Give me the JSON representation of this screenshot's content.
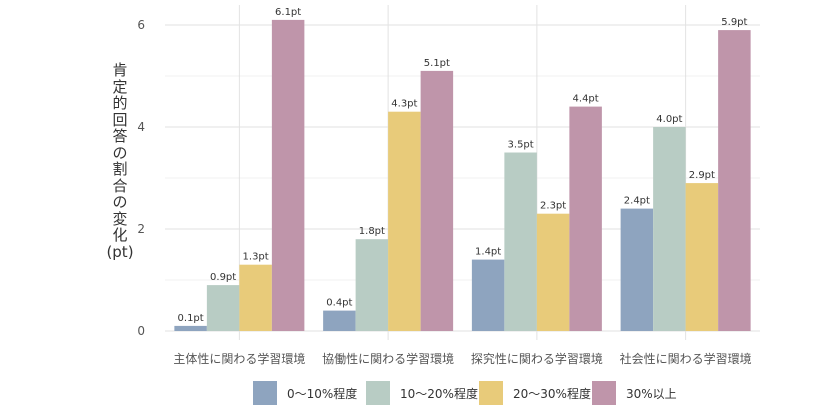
{
  "chart_data": {
    "type": "bar",
    "title": "",
    "xlabel": "",
    "ylabel": "肯定的回答の割合の変化(pt)",
    "ylim": [
      0,
      6.2
    ],
    "yticks": [
      0,
      2,
      4,
      6
    ],
    "grid": true,
    "legend_position": "bottom",
    "categories": [
      "主体性に関わる学習環境",
      "協働性に関わる学習環境",
      "探究性に関わる学習環境",
      "社会性に関わる学習環境"
    ],
    "series": [
      {
        "name": "0～10%程度",
        "color": "#8ea4bf",
        "values": [
          0.1,
          0.4,
          1.4,
          2.4
        ],
        "labels": [
          "0.1pt",
          "0.4pt",
          "1.4pt",
          "2.4pt"
        ]
      },
      {
        "name": "10～20%程度",
        "color": "#b8ccc4",
        "values": [
          0.9,
          1.8,
          3.5,
          4.0
        ],
        "labels": [
          "0.9pt",
          "1.8pt",
          "3.5pt",
          "4.0pt"
        ]
      },
      {
        "name": "20～30%程度",
        "color": "#e8cb7a",
        "values": [
          1.3,
          4.3,
          2.3,
          2.9
        ],
        "labels": [
          "1.3pt",
          "4.3pt",
          "2.3pt",
          "2.9pt"
        ]
      },
      {
        "name": "30%以上",
        "color": "#bf95aa",
        "values": [
          6.1,
          5.1,
          4.4,
          5.9
        ],
        "labels": [
          "6.1pt",
          "5.1pt",
          "4.4pt",
          "5.9pt"
        ]
      }
    ]
  }
}
